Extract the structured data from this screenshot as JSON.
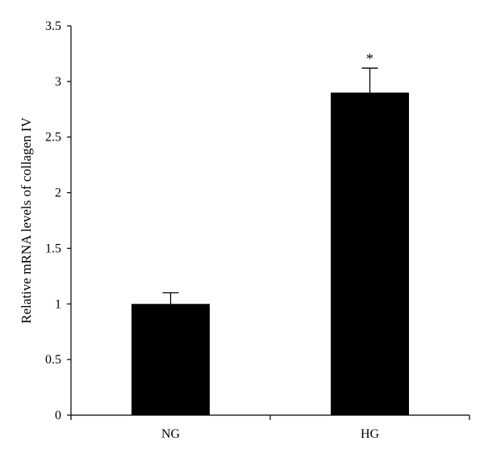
{
  "chart_data": {
    "type": "bar",
    "title": "",
    "xlabel": "",
    "ylabel": "Relative mRNA levels of collagen IV",
    "categories": [
      "NG",
      "HG"
    ],
    "values": [
      1.0,
      2.9
    ],
    "error": [
      0.1,
      0.22
    ],
    "annotations": [
      "",
      "*"
    ],
    "ylim": [
      0,
      3.5
    ],
    "yticks": [
      0,
      0.5,
      1,
      1.5,
      2,
      2.5,
      3,
      3.5
    ],
    "ytick_labels": [
      "0",
      "0.5",
      "1",
      "1.5",
      "2",
      "2.5",
      "3",
      "3.5"
    ],
    "grid": false,
    "legend": "none",
    "bar_color": "#000000"
  }
}
